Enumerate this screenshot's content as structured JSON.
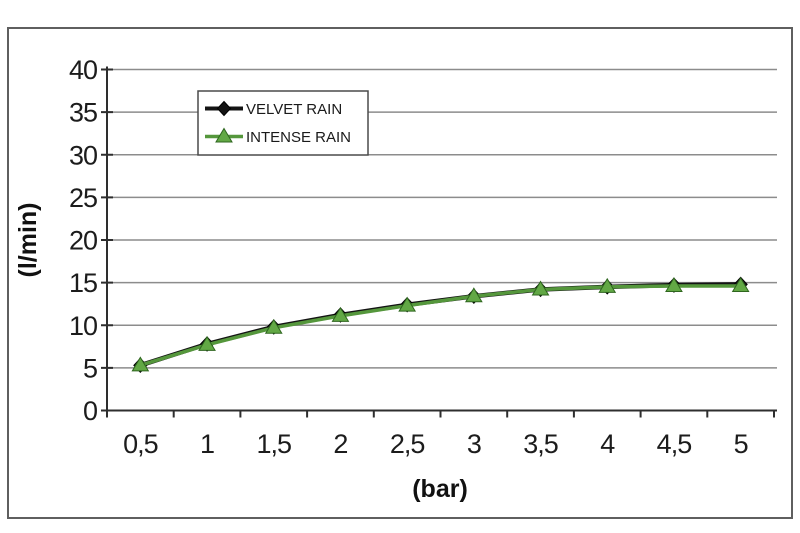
{
  "frame": {
    "border_color": "#5f5f5f",
    "background": "#ffffff"
  },
  "chart_data": {
    "type": "line",
    "title": "",
    "xlabel": "(bar)",
    "ylabel": "(l/min)",
    "x_values": [
      0.5,
      1,
      1.5,
      2,
      2.5,
      3,
      3.5,
      4,
      4.5,
      5
    ],
    "x_tick_labels": [
      "0,5",
      "1",
      "1,5",
      "2",
      "2,5",
      "3",
      "3,5",
      "4",
      "4,5",
      "5"
    ],
    "y_ticks": [
      0,
      5,
      10,
      15,
      20,
      25,
      30,
      35,
      40
    ],
    "y_tick_labels": [
      "0",
      "5",
      "10",
      "15",
      "20",
      "25",
      "30",
      "35",
      "40"
    ],
    "ylim": [
      0,
      40
    ],
    "grid": true,
    "legend_position": "top-left-inside",
    "series": [
      {
        "name": "VELVET RAIN",
        "color": "#141414",
        "marker": "diamond",
        "marker_fill": "#141414",
        "marker_stroke": "#000000",
        "values": [
          5.3,
          7.8,
          9.8,
          11.2,
          12.4,
          13.4,
          14.2,
          14.5,
          14.7,
          14.8
        ]
      },
      {
        "name": "INTENSE RAIN",
        "color": "#55973c",
        "marker": "triangle",
        "marker_fill": "#62a845",
        "marker_stroke": "#2e661e",
        "values": [
          5.3,
          7.7,
          9.7,
          11.1,
          12.3,
          13.4,
          14.2,
          14.5,
          14.6,
          14.6
        ]
      }
    ],
    "colors": {
      "gridline": "#8c8c8c",
      "axis": "#2e2e2e",
      "tick_label": "#1c1c1c",
      "legend_border": "#4a4a4a",
      "legend_background": "#ffffff"
    }
  }
}
